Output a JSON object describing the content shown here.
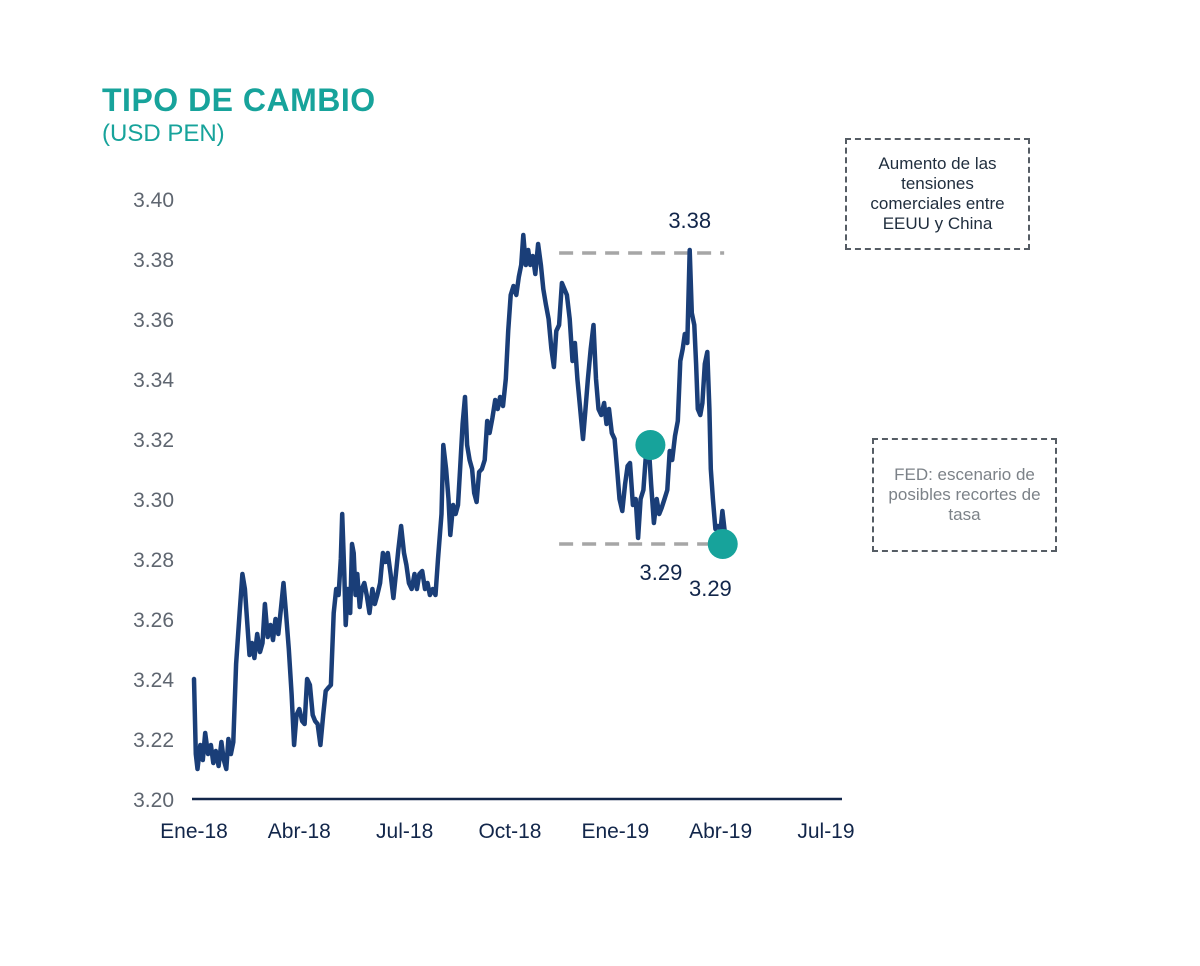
{
  "chart_data": {
    "type": "line",
    "title": "TIPO DE CAMBIO",
    "subtitle": "(USD PEN)",
    "xlabel": "",
    "ylabel": "",
    "ylim": [
      3.2,
      3.4
    ],
    "yticks": [
      "3.20",
      "3.22",
      "3.24",
      "3.26",
      "3.28",
      "3.30",
      "3.32",
      "3.34",
      "3.36",
      "3.38",
      "3.40"
    ],
    "xticks": [
      {
        "x": 0,
        "label": "Ene-18"
      },
      {
        "x": 3,
        "label": "Abr-18"
      },
      {
        "x": 6,
        "label": "Jul-18"
      },
      {
        "x": 9,
        "label": "Oct-18"
      },
      {
        "x": 12,
        "label": "Ene-19"
      },
      {
        "x": 15,
        "label": "Abr-19"
      },
      {
        "x": 18,
        "label": "Jul-19"
      }
    ],
    "xlim": [
      0,
      18.4
    ],
    "series": [
      {
        "name": "",
        "color": "#1a3e78",
        "points": [
          [
            0.0,
            3.24
          ],
          [
            0.05,
            3.215
          ],
          [
            0.1,
            3.21
          ],
          [
            0.18,
            3.218
          ],
          [
            0.25,
            3.213
          ],
          [
            0.32,
            3.222
          ],
          [
            0.4,
            3.215
          ],
          [
            0.48,
            3.218
          ],
          [
            0.55,
            3.212
          ],
          [
            0.62,
            3.216
          ],
          [
            0.7,
            3.211
          ],
          [
            0.78,
            3.219
          ],
          [
            0.85,
            3.213
          ],
          [
            0.92,
            3.21
          ],
          [
            0.98,
            3.22
          ],
          [
            1.05,
            3.215
          ],
          [
            1.12,
            3.219
          ],
          [
            1.2,
            3.245
          ],
          [
            1.3,
            3.262
          ],
          [
            1.38,
            3.275
          ],
          [
            1.45,
            3.27
          ],
          [
            1.52,
            3.258
          ],
          [
            1.58,
            3.248
          ],
          [
            1.65,
            3.252
          ],
          [
            1.72,
            3.247
          ],
          [
            1.8,
            3.255
          ],
          [
            1.88,
            3.249
          ],
          [
            1.95,
            3.252
          ],
          [
            2.02,
            3.265
          ],
          [
            2.1,
            3.254
          ],
          [
            2.18,
            3.258
          ],
          [
            2.25,
            3.253
          ],
          [
            2.32,
            3.26
          ],
          [
            2.4,
            3.255
          ],
          [
            2.48,
            3.264
          ],
          [
            2.55,
            3.272
          ],
          [
            2.62,
            3.262
          ],
          [
            2.7,
            3.25
          ],
          [
            2.78,
            3.235
          ],
          [
            2.85,
            3.218
          ],
          [
            2.92,
            3.228
          ],
          [
            3.0,
            3.23
          ],
          [
            3.08,
            3.226
          ],
          [
            3.15,
            3.225
          ],
          [
            3.22,
            3.24
          ],
          [
            3.3,
            3.238
          ],
          [
            3.38,
            3.228
          ],
          [
            3.45,
            3.226
          ],
          [
            3.52,
            3.225
          ],
          [
            3.6,
            3.218
          ],
          [
            3.68,
            3.228
          ],
          [
            3.75,
            3.236
          ],
          [
            3.82,
            3.237
          ],
          [
            3.9,
            3.238
          ],
          [
            3.98,
            3.262
          ],
          [
            4.05,
            3.27
          ],
          [
            4.12,
            3.268
          ],
          [
            4.18,
            3.28
          ],
          [
            4.22,
            3.295
          ],
          [
            4.28,
            3.275
          ],
          [
            4.32,
            3.258
          ],
          [
            4.38,
            3.27
          ],
          [
            4.45,
            3.262
          ],
          [
            4.5,
            3.285
          ],
          [
            4.55,
            3.282
          ],
          [
            4.6,
            3.268
          ],
          [
            4.65,
            3.275
          ],
          [
            4.72,
            3.264
          ],
          [
            4.78,
            3.27
          ],
          [
            4.85,
            3.272
          ],
          [
            4.92,
            3.268
          ],
          [
            5.0,
            3.262
          ],
          [
            5.08,
            3.27
          ],
          [
            5.15,
            3.265
          ],
          [
            5.22,
            3.268
          ],
          [
            5.3,
            3.272
          ],
          [
            5.38,
            3.282
          ],
          [
            5.45,
            3.279
          ],
          [
            5.52,
            3.282
          ],
          [
            5.6,
            3.275
          ],
          [
            5.68,
            3.267
          ],
          [
            5.75,
            3.275
          ],
          [
            5.82,
            3.283
          ],
          [
            5.9,
            3.291
          ],
          [
            5.98,
            3.282
          ],
          [
            6.05,
            3.278
          ],
          [
            6.12,
            3.272
          ],
          [
            6.2,
            3.27
          ],
          [
            6.28,
            3.275
          ],
          [
            6.35,
            3.27
          ],
          [
            6.42,
            3.275
          ],
          [
            6.5,
            3.276
          ],
          [
            6.58,
            3.27
          ],
          [
            6.65,
            3.272
          ],
          [
            6.72,
            3.268
          ],
          [
            6.8,
            3.27
          ],
          [
            6.88,
            3.268
          ],
          [
            6.95,
            3.28
          ],
          [
            7.05,
            3.295
          ],
          [
            7.1,
            3.318
          ],
          [
            7.18,
            3.31
          ],
          [
            7.25,
            3.3
          ],
          [
            7.3,
            3.288
          ],
          [
            7.38,
            3.298
          ],
          [
            7.45,
            3.295
          ],
          [
            7.52,
            3.298
          ],
          [
            7.58,
            3.31
          ],
          [
            7.65,
            3.325
          ],
          [
            7.72,
            3.334
          ],
          [
            7.78,
            3.318
          ],
          [
            7.85,
            3.313
          ],
          [
            7.92,
            3.31
          ],
          [
            7.98,
            3.302
          ],
          [
            8.05,
            3.299
          ],
          [
            8.12,
            3.309
          ],
          [
            8.2,
            3.31
          ],
          [
            8.28,
            3.313
          ],
          [
            8.35,
            3.326
          ],
          [
            8.42,
            3.322
          ],
          [
            8.5,
            3.327
          ],
          [
            8.58,
            3.333
          ],
          [
            8.65,
            3.33
          ],
          [
            8.72,
            3.334
          ],
          [
            8.8,
            3.331
          ],
          [
            8.88,
            3.34
          ],
          [
            8.95,
            3.356
          ],
          [
            9.02,
            3.368
          ],
          [
            9.1,
            3.371
          ],
          [
            9.18,
            3.368
          ],
          [
            9.25,
            3.374
          ],
          [
            9.32,
            3.378
          ],
          [
            9.38,
            3.388
          ],
          [
            9.45,
            3.378
          ],
          [
            9.52,
            3.383
          ],
          [
            9.58,
            3.378
          ],
          [
            9.65,
            3.381
          ],
          [
            9.72,
            3.375
          ],
          [
            9.8,
            3.385
          ],
          [
            9.88,
            3.378
          ],
          [
            9.95,
            3.37
          ],
          [
            10.02,
            3.365
          ],
          [
            10.1,
            3.36
          ],
          [
            10.18,
            3.35
          ],
          [
            10.25,
            3.344
          ],
          [
            10.32,
            3.356
          ],
          [
            10.4,
            3.358
          ],
          [
            10.48,
            3.372
          ],
          [
            10.55,
            3.37
          ],
          [
            10.62,
            3.368
          ],
          [
            10.7,
            3.36
          ],
          [
            10.78,
            3.346
          ],
          [
            10.85,
            3.352
          ],
          [
            10.92,
            3.34
          ],
          [
            11.0,
            3.33
          ],
          [
            11.08,
            3.32
          ],
          [
            11.15,
            3.33
          ],
          [
            11.22,
            3.34
          ],
          [
            11.3,
            3.35
          ],
          [
            11.38,
            3.358
          ],
          [
            11.45,
            3.34
          ],
          [
            11.52,
            3.33
          ],
          [
            11.6,
            3.328
          ],
          [
            11.68,
            3.332
          ],
          [
            11.75,
            3.325
          ],
          [
            11.82,
            3.33
          ],
          [
            11.9,
            3.322
          ],
          [
            11.98,
            3.32
          ],
          [
            12.05,
            3.31
          ],
          [
            12.12,
            3.3
          ],
          [
            12.2,
            3.296
          ],
          [
            12.28,
            3.305
          ],
          [
            12.35,
            3.311
          ],
          [
            12.42,
            3.312
          ],
          [
            12.5,
            3.298
          ],
          [
            12.58,
            3.3
          ],
          [
            12.65,
            3.287
          ],
          [
            12.72,
            3.3
          ],
          [
            12.8,
            3.303
          ],
          [
            12.88,
            3.316
          ],
          [
            12.95,
            3.318
          ],
          [
            13.02,
            3.305
          ],
          [
            13.1,
            3.292
          ],
          [
            13.18,
            3.3
          ],
          [
            13.25,
            3.295
          ],
          [
            13.32,
            3.297
          ],
          [
            13.4,
            3.3
          ],
          [
            13.48,
            3.303
          ],
          [
            13.55,
            3.316
          ],
          [
            13.62,
            3.313
          ],
          [
            13.7,
            3.321
          ],
          [
            13.78,
            3.326
          ],
          [
            13.85,
            3.346
          ],
          [
            13.92,
            3.35
          ],
          [
            13.98,
            3.355
          ],
          [
            14.05,
            3.352
          ],
          [
            14.12,
            3.383
          ],
          [
            14.18,
            3.362
          ],
          [
            14.25,
            3.358
          ],
          [
            14.3,
            3.345
          ],
          [
            14.35,
            3.33
          ],
          [
            14.42,
            3.328
          ],
          [
            14.48,
            3.332
          ],
          [
            14.55,
            3.345
          ],
          [
            14.62,
            3.349
          ],
          [
            14.68,
            3.33
          ],
          [
            14.72,
            3.31
          ],
          [
            14.78,
            3.3
          ],
          [
            14.85,
            3.29
          ],
          [
            14.92,
            3.291
          ],
          [
            15.0,
            3.29
          ],
          [
            15.05,
            3.296
          ],
          [
            15.12,
            3.289
          ]
        ]
      }
    ],
    "annotations": [
      {
        "label": "3.38",
        "x": 14.12,
        "y": 3.383,
        "position": "above"
      },
      {
        "label": "3.29",
        "x": 13.3,
        "y": 3.285,
        "position": "below"
      },
      {
        "label": "3.29",
        "x": 15.05,
        "y": 3.285,
        "position": "below"
      }
    ],
    "markers": [
      {
        "x": 13.0,
        "y": 3.318,
        "color": "#17a39b"
      },
      {
        "x": 15.06,
        "y": 3.285,
        "color": "#17a39b"
      }
    ],
    "reference_lines": [
      {
        "y": 3.382,
        "x_from": 10.4,
        "x_to": 15.1,
        "color": "#a6a6a6"
      },
      {
        "y": 3.285,
        "x_from": 10.4,
        "x_to": 15.1,
        "color": "#a6a6a6"
      }
    ],
    "notes": {
      "trade": "Aumento de las tensiones comerciales entre EEUU y China",
      "fed": "FED: escenario de posibles recortes de tasa"
    },
    "grid": false,
    "legend": "none"
  }
}
